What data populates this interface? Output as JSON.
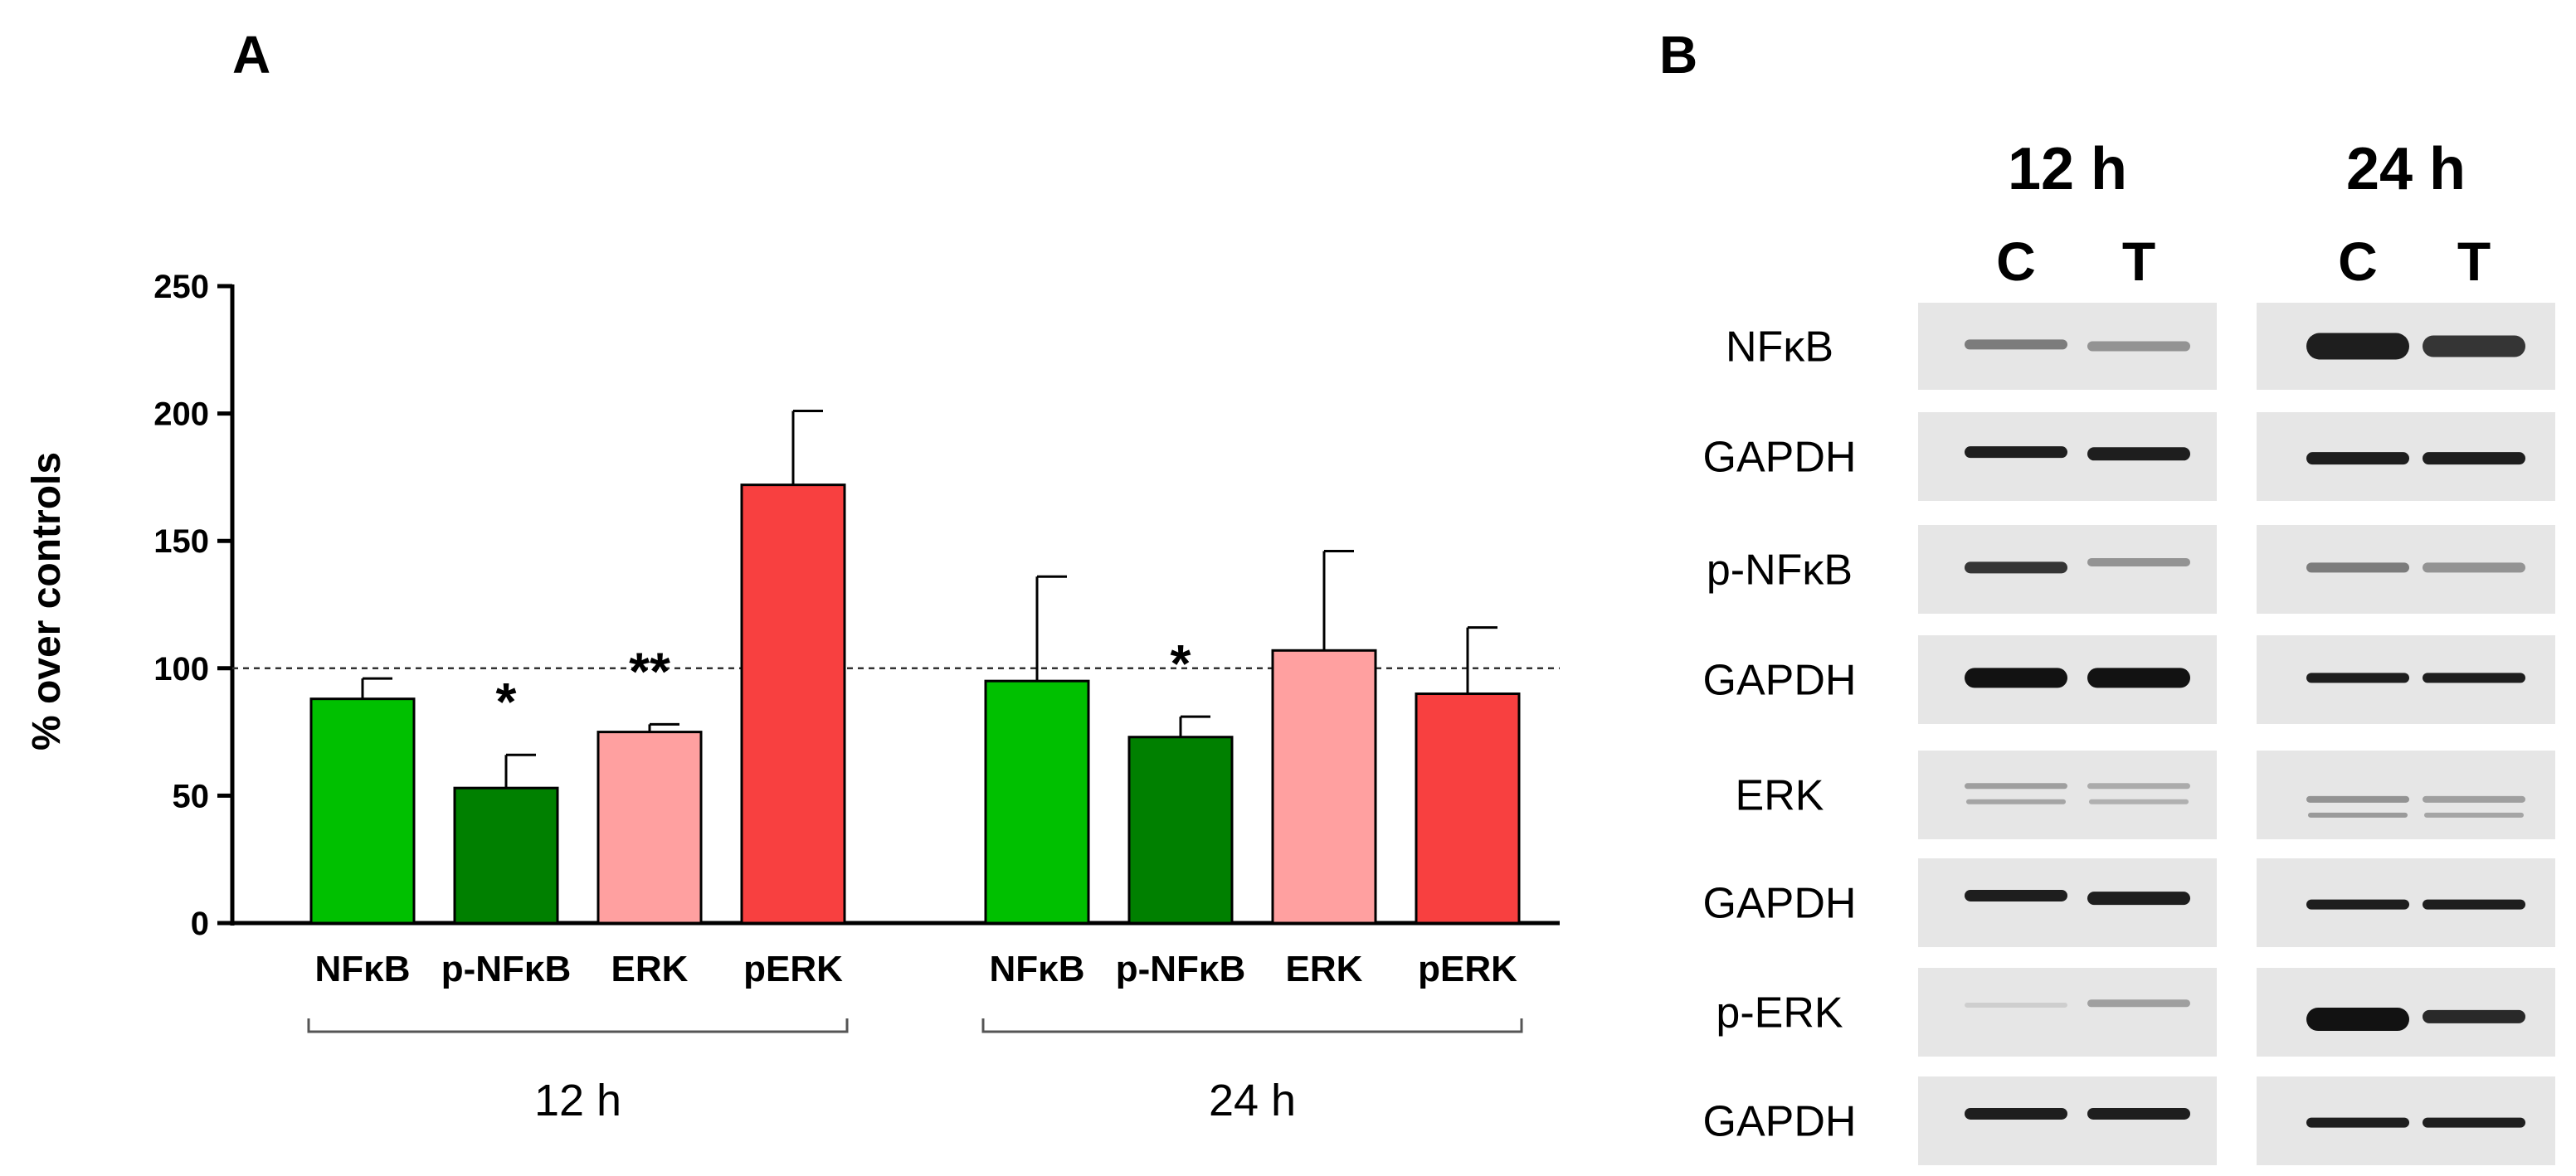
{
  "chart_data": {
    "type": "bar",
    "panel_label": "A",
    "ylabel": "% over controls",
    "ylim": [
      0,
      250
    ],
    "yticks": [
      0,
      50,
      100,
      150,
      200,
      250
    ],
    "reference_line": 100,
    "groups": [
      {
        "label": "12 h",
        "bars": [
          {
            "category": "NFκB",
            "value": 88,
            "error": 8,
            "color": "#00c000",
            "sig": ""
          },
          {
            "category": "p-NFκB",
            "value": 53,
            "error": 13,
            "color": "#008000",
            "sig": "*"
          },
          {
            "category": "ERK",
            "value": 75,
            "error": 3,
            "color": "#ffa0a0",
            "sig": "**"
          },
          {
            "category": "pERK",
            "value": 172,
            "error": 29,
            "color": "#f84040",
            "sig": ""
          }
        ]
      },
      {
        "label": "24 h",
        "bars": [
          {
            "category": "NFκB",
            "value": 95,
            "error": 41,
            "color": "#00c000",
            "sig": ""
          },
          {
            "category": "p-NFκB",
            "value": 73,
            "error": 8,
            "color": "#008000",
            "sig": "*"
          },
          {
            "category": "ERK",
            "value": 107,
            "error": 39,
            "color": "#ffa0a0",
            "sig": ""
          },
          {
            "category": "pERK",
            "value": 90,
            "error": 26,
            "color": "#f84040",
            "sig": ""
          }
        ]
      }
    ]
  },
  "western_blot": {
    "panel_label": "B",
    "timepoints": [
      {
        "label": "12 h",
        "lanes": [
          "C",
          "T"
        ]
      },
      {
        "label": "24 h",
        "lanes": [
          "C",
          "T"
        ]
      }
    ],
    "rows": [
      {
        "protein": "NFκB"
      },
      {
        "protein": "GAPDH"
      },
      {
        "protein": "p-NFκB"
      },
      {
        "protein": "GAPDH"
      },
      {
        "protein": "ERK"
      },
      {
        "protein": "GAPDH"
      },
      {
        "protein": "p-ERK"
      },
      {
        "protein": "GAPDH"
      }
    ]
  }
}
